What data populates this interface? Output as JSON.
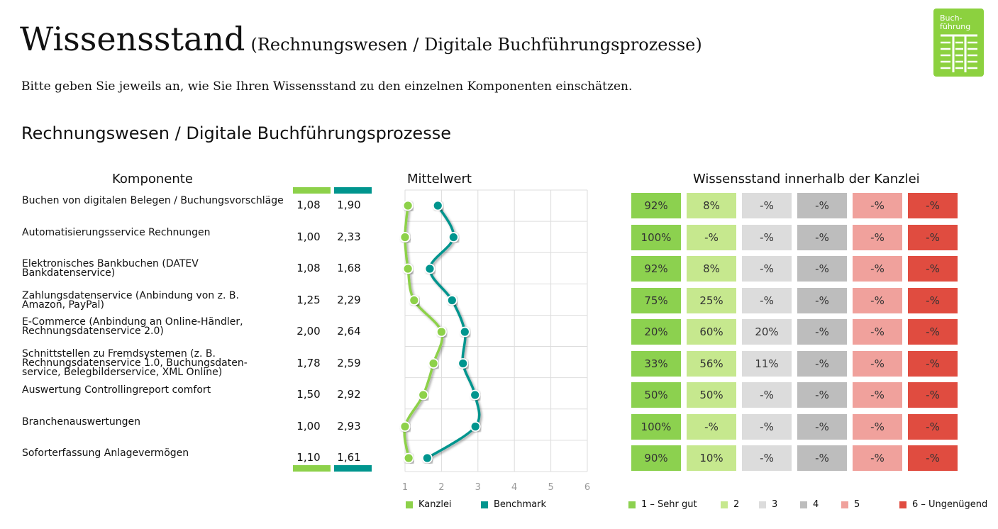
{
  "title": "Wissensstand",
  "subtitle": "(Rechnungswesen / Digitale Buchführungsprozesse)",
  "intro": "Bitte geben Sie jeweils an, wie Sie Ihren Wissensstand zu den einzelnen Komponenten einschätzen.",
  "section": "Rechnungswesen / Digitale Buchführungsprozesse",
  "logo": {
    "line1": "Buch-",
    "line2": "führung"
  },
  "headers": {
    "komponente": "Komponente",
    "mittelwert": "Mittelwert",
    "wissensstand": "Wissensstand innerhalb der Kanzlei"
  },
  "colors": {
    "kanzlei": "#8DD14A",
    "benchmark": "#00958E",
    "levels": [
      "#8CD14F",
      "#C6E88E",
      "#DCDCDC",
      "#BDBDBD",
      "#F0A19C",
      "#E04C40"
    ]
  },
  "rows": [
    {
      "label": "Buchen von digitalen Belegen / Buchungsvorschläge",
      "k": "1,08",
      "b": "1,90",
      "pct": [
        "92%",
        "8%",
        "-%",
        "-%",
        "-%",
        "-%"
      ]
    },
    {
      "label": "Automatisierungsservice Rechnungen",
      "k": "1,00",
      "b": "2,33",
      "pct": [
        "100%",
        "-%",
        "-%",
        "-%",
        "-%",
        "-%"
      ]
    },
    {
      "label": "Elektronisches Bankbuchen (DATEV Bankdatenservice)",
      "k": "1,08",
      "b": "1,68",
      "pct": [
        "92%",
        "8%",
        "-%",
        "-%",
        "-%",
        "-%"
      ]
    },
    {
      "label": "Zahlungsdatenservice (Anbindung von z. B. Amazon, PayPal)",
      "k": "1,25",
      "b": "2,29",
      "pct": [
        "75%",
        "25%",
        "-%",
        "-%",
        "-%",
        "-%"
      ]
    },
    {
      "label": "E-Commerce (Anbindung an Online-Händler, Rechnungsdatenservice 2.0)",
      "k": "2,00",
      "b": "2,64",
      "pct": [
        "20%",
        "60%",
        "20%",
        "-%",
        "-%",
        "-%"
      ]
    },
    {
      "label": "Schnittstellen zu Fremdsystemen (z. B. Rechnungsdatenservice 1.0, Buchungsdaten-service, Belegbilderservice, XML Online)",
      "k": "1,78",
      "b": "2,59",
      "pct": [
        "33%",
        "56%",
        "11%",
        "-%",
        "-%",
        "-%"
      ]
    },
    {
      "label": "Auswertung Controllingreport comfort",
      "k": "1,50",
      "b": "2,92",
      "pct": [
        "50%",
        "50%",
        "-%",
        "-%",
        "-%",
        "-%"
      ]
    },
    {
      "label": "Branchenauswertungen",
      "k": "1,00",
      "b": "2,93",
      "pct": [
        "100%",
        "-%",
        "-%",
        "-%",
        "-%",
        "-%"
      ]
    },
    {
      "label": "Soforterfassung Anlagevermögen",
      "k": "1,10",
      "b": "1,61",
      "pct": [
        "90%",
        "10%",
        "-%",
        "-%",
        "-%",
        "-%"
      ]
    }
  ],
  "chart_data": {
    "type": "line",
    "title": "Mittelwert",
    "xlim": [
      1,
      6
    ],
    "xticks": [
      "1",
      "2",
      "3",
      "4",
      "5",
      "6"
    ],
    "series": [
      {
        "name": "Kanzlei",
        "values": [
          1.08,
          1.0,
          1.08,
          1.25,
          2.0,
          1.78,
          1.5,
          1.0,
          1.1
        ]
      },
      {
        "name": "Benchmark",
        "values": [
          1.9,
          2.33,
          1.68,
          2.29,
          2.64,
          2.59,
          2.92,
          2.93,
          1.61
        ]
      }
    ]
  },
  "level_legend": [
    "1 – Sehr gut",
    "2",
    "3",
    "4",
    "5",
    "6 – Ungenügend"
  ]
}
